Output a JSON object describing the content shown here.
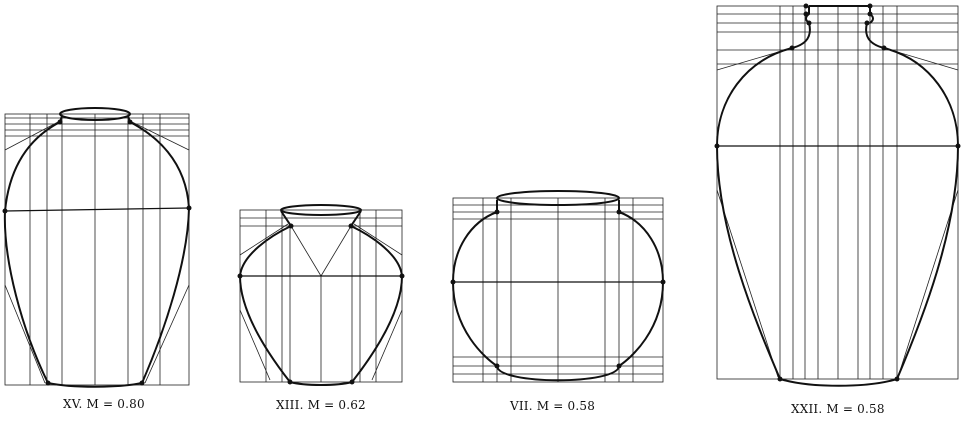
{
  "figures": [
    {
      "id": "xv",
      "caption": "XV.  M = 0.80"
    },
    {
      "id": "xiii",
      "caption": "XIII.  M = 0.62"
    },
    {
      "id": "vii",
      "caption": "VII.  M = 0.58"
    },
    {
      "id": "xxii",
      "caption": "XXII.  M = 0.58"
    }
  ]
}
